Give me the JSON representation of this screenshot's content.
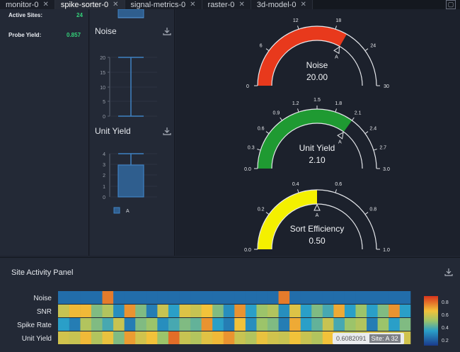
{
  "tabs": [
    {
      "label": "monitor-0",
      "active": false
    },
    {
      "label": "spike-sorter-0",
      "active": true
    },
    {
      "label": "signal-metrics-0",
      "active": false
    },
    {
      "label": "raster-0",
      "active": false
    },
    {
      "label": "3d-model-0",
      "active": false
    }
  ],
  "stats": {
    "active_sites_label": "Active Sites:",
    "active_sites_value": "24",
    "probe_yield_label": "Probe Yield:",
    "probe_yield_value": "0.857"
  },
  "boxplots": {
    "noise_title": "Noise",
    "noise_ticks": [
      "20",
      "15",
      "10",
      "5",
      "0"
    ],
    "unit_yield_title": "Unit Yield",
    "unit_yield_ticks": [
      "4",
      "3",
      "2",
      "1",
      "0"
    ],
    "legend_label": "A"
  },
  "gauges": [
    {
      "name": "Noise",
      "value": 20.0,
      "value_label": "20.00",
      "min": 0,
      "max": 30,
      "ticks": [
        "0",
        "6",
        "12",
        "18",
        "24",
        "30"
      ],
      "color": "#e8391c",
      "marker": "A"
    },
    {
      "name": "Unit Yield",
      "value": 2.1,
      "value_label": "2.10",
      "min": 0,
      "max": 3,
      "ticks": [
        "0.0",
        "0.3",
        "0.6",
        "0.9",
        "1.2",
        "1.5",
        "1.8",
        "2.1",
        "2.4",
        "2.7",
        "3.0"
      ],
      "color": "#1f9a32",
      "marker": "A"
    },
    {
      "name": "Sort Efficiency",
      "value": 0.5,
      "value_label": "0.50",
      "min": 0,
      "max": 1,
      "ticks": [
        "0.0",
        "0.2",
        "0.4",
        "0.6",
        "0.8",
        "1.0"
      ],
      "color": "#f4f000",
      "marker": "A"
    }
  ],
  "heatmap": {
    "title": "Site Activity Panel",
    "rows": [
      "Noise",
      "SNR",
      "Spike Rate",
      "Unit Yield"
    ],
    "colorbar_ticks": [
      "0.8",
      "0.6",
      "0.4",
      "0.2"
    ],
    "tooltip_value": "0.6082091",
    "tooltip_site": "Site: A 32"
  },
  "chart_data": {
    "type": "heatmap",
    "rows": [
      "Noise",
      "SNR",
      "Spike Rate",
      "Unit Yield"
    ],
    "columns": 32,
    "values": [
      [
        0.15,
        0.15,
        0.15,
        0.15,
        0.85,
        0.15,
        0.15,
        0.15,
        0.15,
        0.15,
        0.15,
        0.15,
        0.15,
        0.15,
        0.15,
        0.15,
        0.15,
        0.15,
        0.15,
        0.15,
        0.85,
        0.15,
        0.15,
        0.15,
        0.15,
        0.15,
        0.15,
        0.15,
        0.15,
        0.15,
        0.15,
        0.15
      ],
      [
        0.6,
        0.72,
        0.72,
        0.45,
        0.55,
        0.25,
        0.8,
        0.45,
        0.2,
        0.6,
        0.3,
        0.65,
        0.6,
        0.7,
        0.45,
        0.25,
        0.8,
        0.3,
        0.5,
        0.55,
        0.25,
        0.65,
        0.3,
        0.45,
        0.35,
        0.75,
        0.3,
        0.5,
        0.3,
        0.45,
        0.8,
        0.3
      ],
      [
        0.3,
        0.2,
        0.55,
        0.45,
        0.35,
        0.6,
        0.2,
        0.45,
        0.5,
        0.25,
        0.35,
        0.45,
        0.4,
        0.8,
        0.3,
        0.2,
        0.7,
        0.25,
        0.5,
        0.45,
        0.2,
        0.75,
        0.3,
        0.4,
        0.6,
        0.35,
        0.5,
        0.55,
        0.2,
        0.5,
        0.3,
        0.45
      ],
      [
        0.62,
        0.6,
        0.72,
        0.55,
        0.68,
        0.45,
        0.78,
        0.62,
        0.7,
        0.5,
        0.88,
        0.6,
        0.55,
        0.66,
        0.72,
        0.8,
        0.6,
        0.55,
        0.68,
        0.62,
        0.6,
        0.7,
        0.6,
        0.55,
        0.7,
        0.62,
        0.58,
        0.6,
        0.65,
        0.62,
        0.6,
        0.62
      ]
    ]
  }
}
